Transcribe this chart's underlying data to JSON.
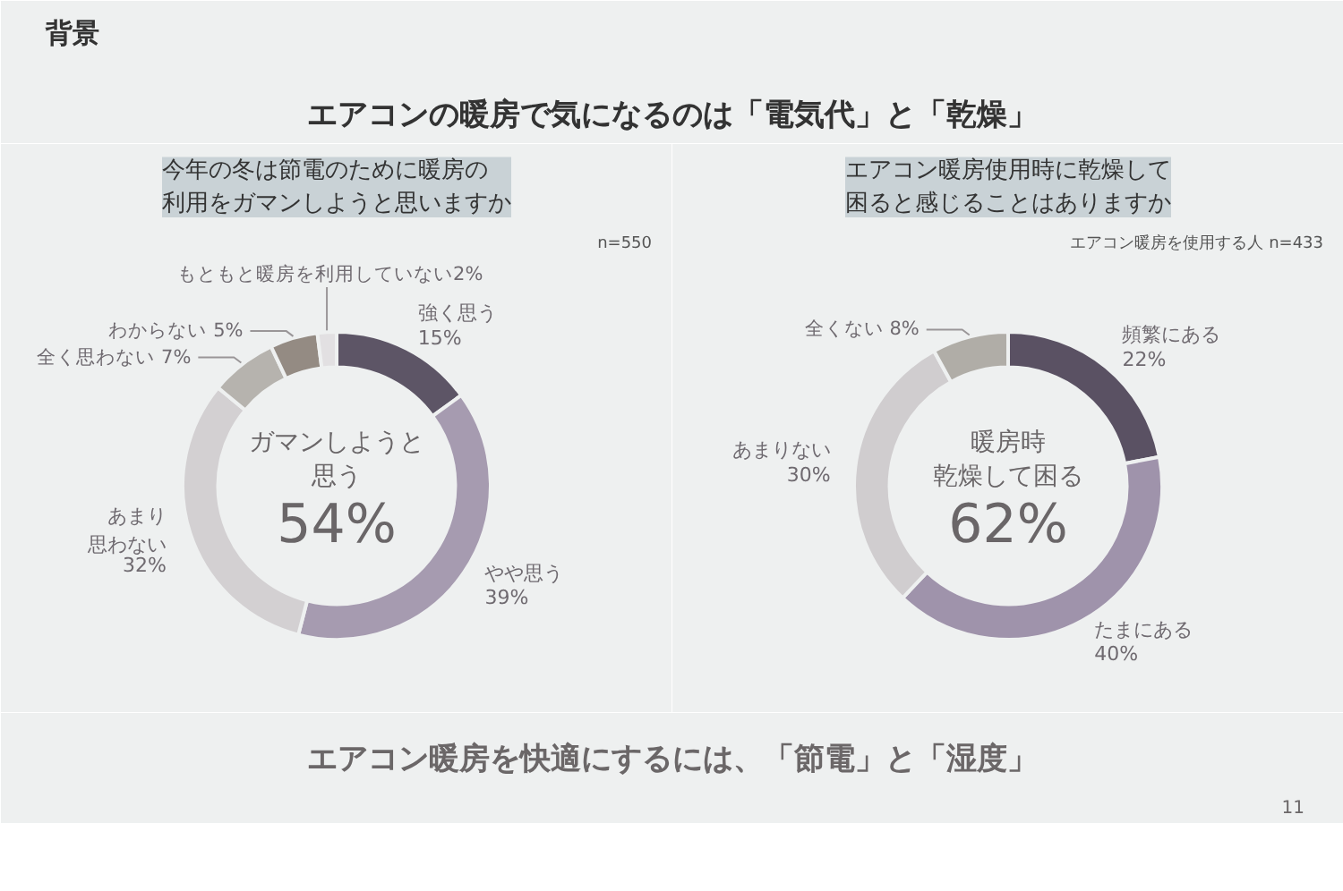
{
  "chart_data": [
    {
      "type": "donut",
      "title": "今年の冬は節電のために暖房の利用をガマンしようと思いますか",
      "categories": [
        "強く思う",
        "やや思う",
        "あまり思わない",
        "全く思わない",
        "わからない",
        "もともと暖房を利用していない"
      ],
      "values": [
        15,
        39,
        32,
        7,
        5,
        2
      ],
      "colors": [
        "#5d5566",
        "#a69bb0",
        "#d3d0d2",
        "#b6b3ae",
        "#948b83",
        "#e2e0e2"
      ],
      "value_labels": [
        "15%",
        "39%",
        "32%",
        "7%",
        "5%",
        "2%"
      ],
      "annotations": [
        "n=550",
        "ガマンしようと",
        "思う",
        "54%",
        "背景",
        "エアコンの暖房で気になるのは「電気代」と「乾燥」"
      ]
    },
    {
      "type": "donut",
      "title": "エアコン暖房使用時に乾燥して困ると感じることはありますか",
      "categories": [
        "頻繁にある",
        "たまにある",
        "あまりない",
        "全くない"
      ],
      "values": [
        22,
        40,
        30,
        8
      ],
      "colors": [
        "#5a5163",
        "#9f93ab",
        "#d0cdcf",
        "#b0ada7"
      ],
      "value_labels": [
        "22%",
        "40%",
        "30%",
        "8%"
      ],
      "annotations": [
        "エアコン暖房を使用する人 n=433",
        "暖房時",
        "乾燥して困る",
        "62%",
        "エアコン暖房を快適にするには、「節電」と「湿度」",
        "11"
      ]
    }
  ]
}
